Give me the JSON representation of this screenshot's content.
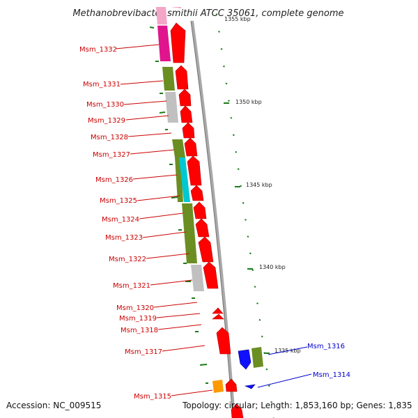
{
  "title": "Methanobrevibacter smithii ATCC 35061, complete genome",
  "footer": {
    "accession": "Accession: NC_009515",
    "summary": "Topology: circular; Length: 1,853,160 bp; Genes: 1,835"
  },
  "colors": {
    "forward": "#ff0000",
    "reverse_label": "#0000cc",
    "forward_label": "#cc0000",
    "backbone": "#a9a9a9",
    "tick": "#1a7a1a",
    "cog_green": "#6b8e23",
    "cog_gray": "#c0c0c0",
    "cog_magenta": "#e0148c",
    "cog_pink": "#f4a6c8",
    "cog_cyan": "#00c8d2",
    "cog_orange": "#ff9900",
    "reverse_blue": "#1010ff"
  },
  "kbp_labels": [
    {
      "text": "1355 kbp"
    },
    {
      "text": "1350 kbp"
    },
    {
      "text": "1345 kbp"
    },
    {
      "text": "1340 kbp"
    },
    {
      "text": "1335 kbp"
    }
  ],
  "genes": [
    {
      "name": "Msm_1332",
      "strand": "forward"
    },
    {
      "name": "Msm_1331",
      "strand": "forward"
    },
    {
      "name": "Msm_1330",
      "strand": "forward"
    },
    {
      "name": "Msm_1329",
      "strand": "forward"
    },
    {
      "name": "Msm_1328",
      "strand": "forward"
    },
    {
      "name": "Msm_1327",
      "strand": "forward"
    },
    {
      "name": "Msm_1326",
      "strand": "forward"
    },
    {
      "name": "Msm_1325",
      "strand": "forward"
    },
    {
      "name": "Msm_1324",
      "strand": "forward"
    },
    {
      "name": "Msm_1323",
      "strand": "forward"
    },
    {
      "name": "Msm_1322",
      "strand": "forward"
    },
    {
      "name": "Msm_1321",
      "strand": "forward"
    },
    {
      "name": "Msm_1320",
      "strand": "forward"
    },
    {
      "name": "Msm_1319",
      "strand": "forward"
    },
    {
      "name": "Msm_1318",
      "strand": "forward"
    },
    {
      "name": "Msm_1317",
      "strand": "forward"
    },
    {
      "name": "Msm_1316",
      "strand": "reverse"
    },
    {
      "name": "Msm_1314",
      "strand": "reverse"
    },
    {
      "name": "Msm_1315",
      "strand": "forward"
    }
  ]
}
